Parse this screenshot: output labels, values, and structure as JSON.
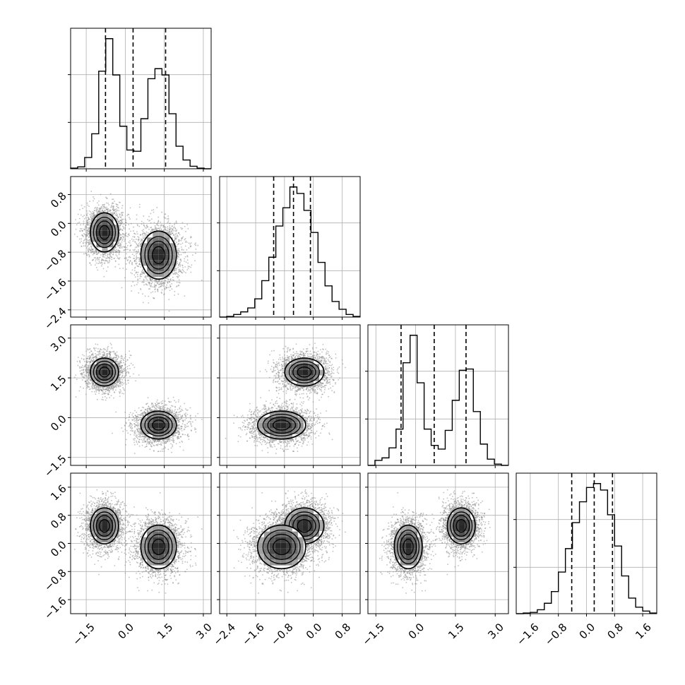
{
  "chart_data": {
    "type": "corner",
    "dims": 4,
    "grid": true,
    "axes": [
      {
        "range": [
          -2.1,
          3.3
        ],
        "ticks": [
          -1.5,
          0.0,
          1.5,
          3.0
        ],
        "tick_labels": [
          "−1.5",
          "0.0",
          "1.5",
          "3.0"
        ]
      },
      {
        "range": [
          -2.6,
          1.3
        ],
        "ticks": [
          -2.4,
          -1.6,
          -0.8,
          0.0,
          0.8
        ],
        "tick_labels": [
          "−2.4",
          "−1.6",
          "−0.8",
          "0.0",
          "0.8"
        ]
      },
      {
        "range": [
          -1.8,
          3.5
        ],
        "ticks": [
          -1.5,
          0.0,
          1.5,
          3.0
        ],
        "tick_labels": [
          "−1.5",
          "0.0",
          "1.5",
          "3.0"
        ]
      },
      {
        "range": [
          -2.0,
          2.0
        ],
        "ticks": [
          -1.6,
          -0.8,
          0.0,
          0.8,
          1.6
        ],
        "tick_labels": [
          "−1.6",
          "−0.8",
          "0.0",
          "0.8",
          "1.6"
        ]
      }
    ],
    "histograms": [
      {
        "dim": 0,
        "quantiles": [
          -0.76,
          0.3,
          1.55
        ],
        "counts": [
          0.5,
          1.5,
          9,
          28,
          78,
          104,
          75,
          34,
          15,
          14,
          40,
          72,
          80,
          75,
          44,
          18,
          7,
          2,
          0.5,
          0
        ]
      },
      {
        "dim": 1,
        "quantiles": [
          -1.1,
          -0.55,
          -0.08
        ],
        "counts": [
          0,
          0.5,
          2,
          4,
          7,
          14,
          28,
          46,
          70,
          84,
          100,
          95,
          82,
          65,
          42,
          24,
          12,
          6,
          2,
          0.5
        ]
      },
      {
        "dim": 2,
        "quantiles": [
          -0.55,
          0.7,
          1.9
        ],
        "counts": [
          0,
          4,
          6,
          14,
          29,
          82,
          104,
          66,
          29,
          16,
          13,
          28,
          52,
          76,
          77,
          43,
          17,
          5,
          1,
          0
        ]
      },
      {
        "dim": 3,
        "quantiles": [
          -0.42,
          0.22,
          0.74
        ],
        "counts": [
          0,
          0.5,
          1,
          3,
          8,
          17,
          32,
          50,
          70,
          86,
          97,
          100,
          95,
          76,
          52,
          29,
          12,
          5,
          2,
          0.5
        ]
      }
    ],
    "clusters": [
      {
        "mean": [
          -0.8,
          -0.25,
          1.72,
          0.5
        ],
        "sd": [
          0.35,
          0.35,
          0.34,
          0.33
        ],
        "weight": 0.5
      },
      {
        "mean": [
          1.28,
          -0.88,
          -0.28,
          -0.1
        ],
        "sd": [
          0.44,
          0.43,
          0.34,
          0.4
        ],
        "weight": 0.5
      }
    ]
  }
}
